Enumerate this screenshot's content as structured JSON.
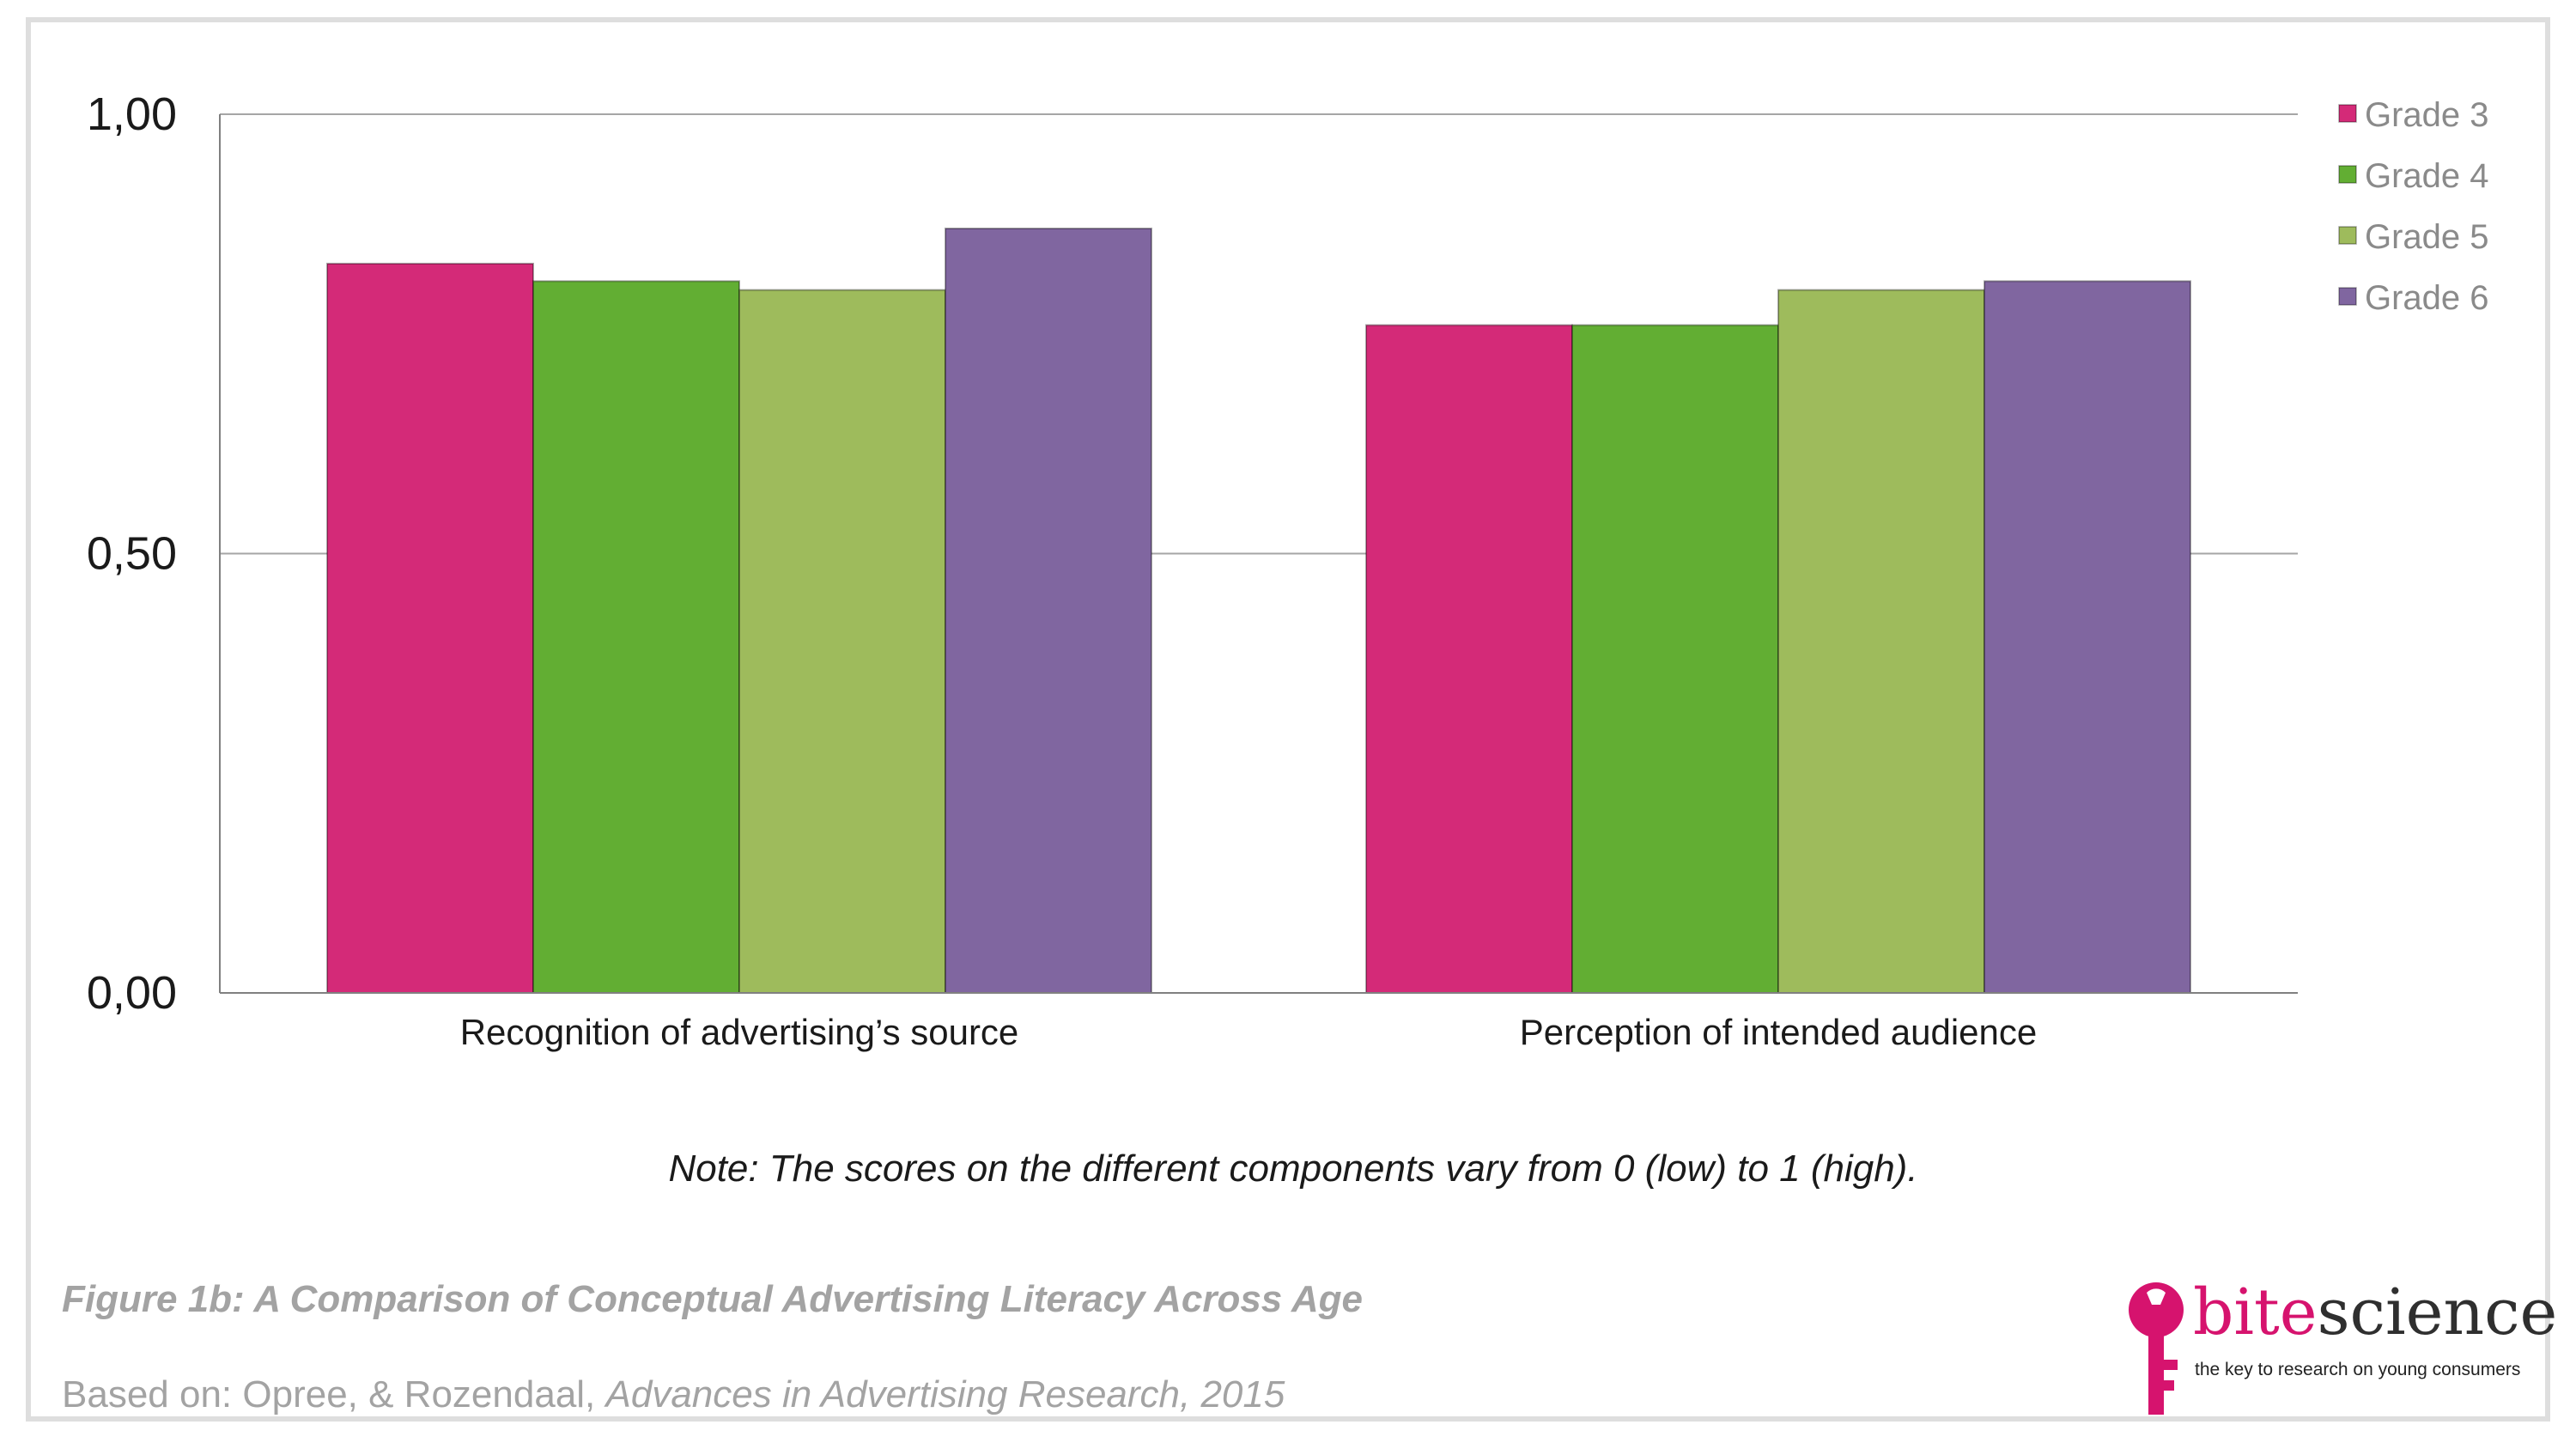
{
  "chart_data": {
    "type": "bar",
    "categories": [
      "Recognition of advertising’s source",
      "Perception of intended audience"
    ],
    "series": [
      {
        "name": "Grade 3",
        "color": "#d42a78",
        "values": [
          0.83,
          0.76
        ]
      },
      {
        "name": "Grade 4",
        "color": "#62ae33",
        "values": [
          0.81,
          0.76
        ]
      },
      {
        "name": "Grade 5",
        "color": "#9ebb5c",
        "values": [
          0.8,
          0.8
        ]
      },
      {
        "name": "Grade 6",
        "color": "#8066a0",
        "values": [
          0.87,
          0.81
        ]
      }
    ],
    "yticks": [
      "0,00",
      "0,50",
      "1,00"
    ],
    "ytick_values": [
      0,
      0.5,
      1
    ],
    "ylim": [
      0,
      1
    ],
    "grid": true,
    "legend_position": "top-right",
    "title": "",
    "xlabel": "",
    "ylabel": ""
  },
  "note": "Note: The scores on the different components vary from 0 (low) to 1 (high).",
  "figure_title": "Figure 1b: A Comparison of Conceptual Advertising Literacy Across Age",
  "source": {
    "prefix": "Based on: Opree, & Rozendaal, ",
    "italic": "Advances in Advertising Research, 2015"
  },
  "logo": {
    "icon": "key-icon",
    "word_bite": "bite",
    "word_science": "science",
    "tagline": "the key to research on young consumers",
    "brand_color": "#d6136e"
  }
}
